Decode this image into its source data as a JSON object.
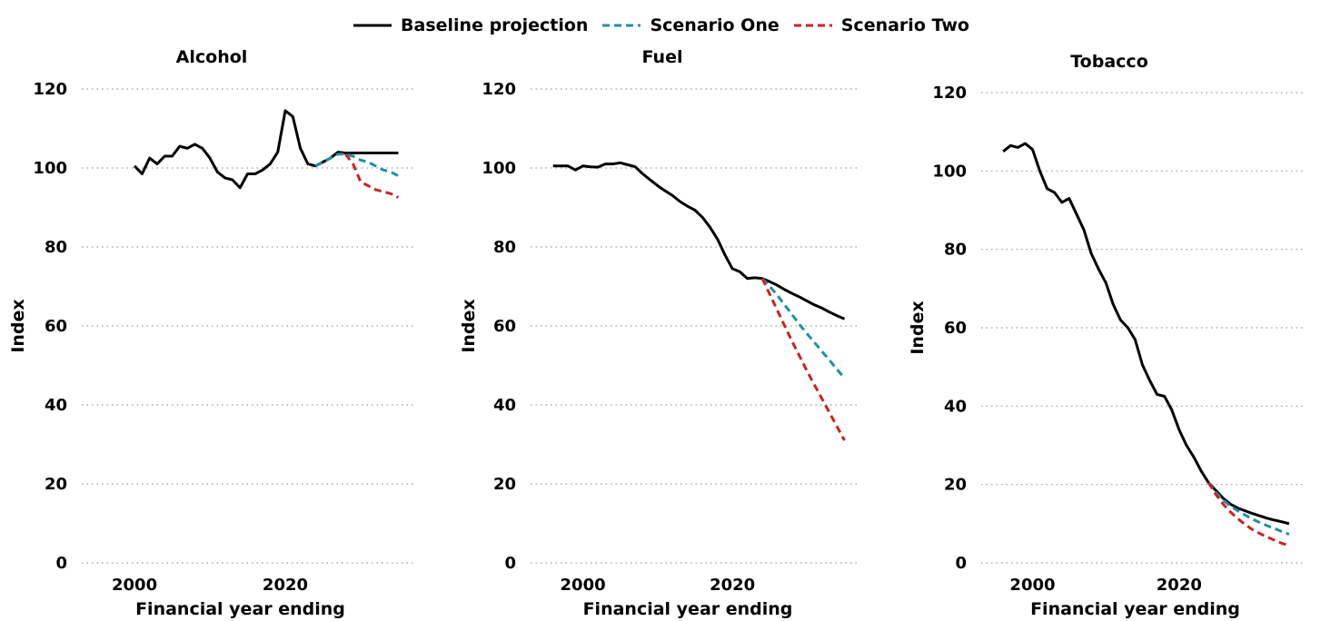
{
  "legend": [
    {
      "name": "Baseline projection",
      "color": "#000000",
      "dash": "solid"
    },
    {
      "name": "Scenario One",
      "color": "#1f8fa6",
      "dash": "dashed"
    },
    {
      "name": "Scenario Two",
      "color": "#cc2222",
      "dash": "dashed"
    }
  ],
  "chart_data": [
    {
      "type": "line",
      "title": "Alcohol",
      "xlabel": "Financial year ending",
      "ylabel": "Index",
      "xlim": [
        1993,
        2037
      ],
      "ylim": [
        0,
        120
      ],
      "xticks": [
        2000,
        2020
      ],
      "yticks": [
        0,
        20,
        40,
        60,
        80,
        100,
        120
      ],
      "grid": "horizontal dotted",
      "series": [
        {
          "name": "Baseline projection",
          "color": "#000000",
          "x": [
            2000,
            2001,
            2002,
            2003,
            2004,
            2005,
            2006,
            2007,
            2008,
            2009,
            2010,
            2011,
            2012,
            2013,
            2014,
            2015,
            2016,
            2017,
            2018,
            2019,
            2020,
            2021,
            2022,
            2023,
            2024,
            2025,
            2026,
            2027,
            2028,
            2029,
            2030,
            2031,
            2032,
            2033,
            2034,
            2035
          ],
          "y": [
            100.5,
            98.5,
            102.5,
            101,
            103,
            103,
            105.5,
            105,
            106,
            105,
            102.5,
            99,
            97.5,
            97,
            95,
            98.5,
            98.5,
            99.5,
            101,
            104,
            114.5,
            113,
            105,
            101,
            100.5,
            101.5,
            102.5,
            104,
            103.8,
            103.8,
            103.8,
            103.8,
            103.8,
            103.8,
            103.8,
            103.8
          ]
        },
        {
          "name": "Scenario One",
          "color": "#1f8fa6",
          "x": [
            2024,
            2025,
            2026,
            2027,
            2028,
            2029,
            2030,
            2031,
            2032,
            2033,
            2034,
            2035
          ],
          "y": [
            100.5,
            101.5,
            102.5,
            103.5,
            103.5,
            103,
            102,
            101.5,
            100.5,
            99.5,
            99,
            98
          ]
        },
        {
          "name": "Scenario Two",
          "color": "#cc2222",
          "x": [
            2028,
            2029,
            2030,
            2031,
            2032,
            2033,
            2034,
            2035
          ],
          "y": [
            103.5,
            101,
            96.5,
            95.5,
            94.5,
            94,
            93.5,
            92.5
          ]
        }
      ]
    },
    {
      "type": "line",
      "title": "Fuel",
      "xlabel": "Financial year ending",
      "ylabel": "Index",
      "xlim": [
        1993,
        2037
      ],
      "ylim": [
        0,
        120
      ],
      "xticks": [
        2000,
        2020
      ],
      "yticks": [
        0,
        20,
        40,
        60,
        80,
        100,
        120
      ],
      "grid": "horizontal dotted",
      "series": [
        {
          "name": "Baseline projection",
          "color": "#000000",
          "x": [
            1996,
            1997,
            1998,
            1999,
            2000,
            2001,
            2002,
            2003,
            2004,
            2005,
            2006,
            2007,
            2008,
            2009,
            2010,
            2011,
            2012,
            2013,
            2014,
            2015,
            2016,
            2017,
            2018,
            2019,
            2020,
            2021,
            2022,
            2023,
            2024,
            2025,
            2026,
            2027,
            2028,
            2029,
            2030,
            2031,
            2032,
            2033,
            2034,
            2035
          ],
          "y": [
            100.5,
            100.5,
            100.5,
            99.5,
            100.5,
            100.3,
            100.2,
            101,
            101,
            101.3,
            100.8,
            100.3,
            98.5,
            97,
            95.5,
            94.2,
            93,
            91.5,
            90.3,
            89.3,
            87.5,
            85,
            82,
            78,
            74.5,
            73.7,
            72,
            72.2,
            72,
            71.2,
            70.3,
            69.2,
            68.2,
            67.3,
            66.3,
            65.3,
            64.5,
            63.5,
            62.6,
            61.8
          ]
        },
        {
          "name": "Scenario One",
          "color": "#1f8fa6",
          "x": [
            2024,
            2025,
            2026,
            2027,
            2028,
            2029,
            2030,
            2031,
            2032,
            2033,
            2034,
            2035
          ],
          "y": [
            72,
            70,
            67.8,
            65.3,
            62.8,
            60.3,
            58,
            55.8,
            53.5,
            51.3,
            49,
            46.8
          ]
        },
        {
          "name": "Scenario Two",
          "color": "#cc2222",
          "x": [
            2024,
            2025,
            2026,
            2027,
            2028,
            2029,
            2030,
            2031,
            2032,
            2033,
            2034,
            2035
          ],
          "y": [
            72,
            68,
            64,
            60,
            56,
            52.3,
            48.5,
            45,
            41.5,
            38,
            34.5,
            31
          ]
        }
      ]
    },
    {
      "type": "line",
      "title": "Tobacco",
      "xlabel": "Financial year ending",
      "ylabel": "Index",
      "xlim": [
        1993,
        2037
      ],
      "ylim": [
        0,
        120
      ],
      "xticks": [
        2000,
        2020
      ],
      "yticks": [
        0,
        20,
        40,
        60,
        80,
        100,
        120
      ],
      "grid": "horizontal dotted",
      "series": [
        {
          "name": "Baseline projection",
          "color": "#000000",
          "x": [
            1996,
            1997,
            1998,
            1999,
            2000,
            2001,
            2002,
            2003,
            2004,
            2005,
            2006,
            2007,
            2008,
            2009,
            2010,
            2011,
            2012,
            2013,
            2014,
            2015,
            2016,
            2017,
            2018,
            2019,
            2020,
            2021,
            2022,
            2023,
            2024,
            2025,
            2026,
            2027,
            2028,
            2029,
            2030,
            2031,
            2032,
            2033,
            2034,
            2035
          ],
          "y": [
            105,
            106.5,
            106,
            107,
            105.5,
            100,
            95.5,
            94.5,
            92,
            93,
            89,
            85,
            79,
            75,
            71.5,
            66,
            62,
            60,
            57,
            50.5,
            46.5,
            43,
            42.5,
            39,
            34,
            30,
            27,
            23.5,
            20.5,
            18.5,
            16.5,
            15,
            14,
            13.3,
            12.6,
            12,
            11.4,
            10.9,
            10.5,
            10
          ]
        },
        {
          "name": "Scenario One",
          "color": "#1f8fa6",
          "x": [
            2024,
            2025,
            2026,
            2027,
            2028,
            2029,
            2030,
            2031,
            2032,
            2033,
            2034,
            2035
          ],
          "y": [
            20.5,
            18,
            16,
            14.5,
            13.3,
            12.2,
            11.2,
            10.3,
            9.5,
            8.8,
            8,
            7.3
          ]
        },
        {
          "name": "Scenario Two",
          "color": "#cc2222",
          "x": [
            2024,
            2025,
            2026,
            2027,
            2028,
            2029,
            2030,
            2031,
            2032,
            2033,
            2034,
            2035
          ],
          "y": [
            20.5,
            17.5,
            15,
            13,
            11.3,
            9.8,
            8.5,
            7.5,
            6.6,
            5.8,
            5,
            4.4
          ]
        }
      ]
    }
  ]
}
